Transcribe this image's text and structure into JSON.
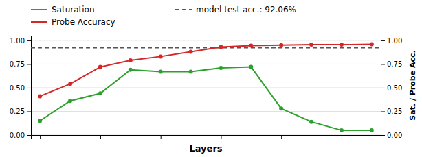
{
  "chart_data": {
    "type": "line",
    "x_label": "Layers",
    "y2_label": "Sat. / Probe Acc.",
    "x": [
      0,
      1,
      2,
      3,
      4,
      5,
      6,
      7,
      8,
      9,
      10,
      11
    ],
    "series": [
      {
        "name": "Saturation",
        "color": "#2ca02c",
        "marker": "circle",
        "line_style": "solid",
        "values": [
          0.15,
          0.36,
          0.44,
          0.69,
          0.67,
          0.67,
          0.71,
          0.72,
          0.28,
          0.14,
          0.05,
          0.05
        ]
      },
      {
        "name": "Probe Accuracy",
        "color": "#d62728",
        "marker": "circle",
        "line_style": "solid",
        "values": [
          0.41,
          0.54,
          0.72,
          0.79,
          0.83,
          0.88,
          0.93,
          0.945,
          0.95,
          0.955,
          0.955,
          0.96
        ]
      }
    ],
    "lines": [
      {
        "name": "model test acc.: 92.06%",
        "value": 0.9206,
        "color": "#555555",
        "line_style": "dashed"
      }
    ],
    "xlim": [
      -0.3,
      11.3
    ],
    "xticks": [
      0,
      2,
      4,
      6,
      8,
      10
    ],
    "ylim": [
      0.0,
      1.05
    ],
    "yticks": [
      {
        "value": 0.0,
        "label": "0.00"
      },
      0.25,
      {
        "value": 0.5,
        "label": "0.50"
      },
      0.75,
      {
        "value": 1.0,
        "label": "1.00"
      }
    ],
    "y2lim": [
      0.0,
      1.05
    ],
    "y2ticks": [
      {
        "value": 0.0,
        "label": "0.00"
      },
      0.25,
      {
        "value": 0.5,
        "label": "0.50"
      },
      0.75,
      {
        "value": 1.0,
        "label": "1.00"
      }
    ],
    "tick_labels": "y",
    "grid": true,
    "legend": "top"
  }
}
